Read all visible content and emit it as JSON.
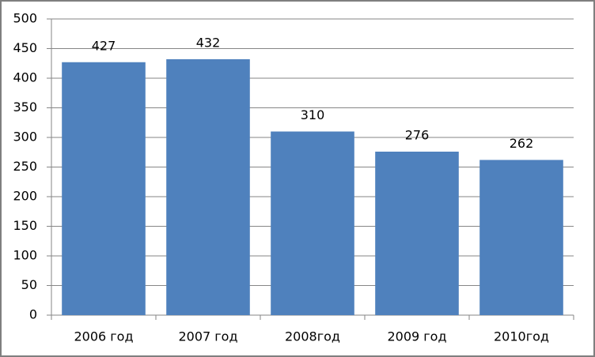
{
  "chart_data": {
    "type": "bar",
    "categories": [
      "2006 год",
      "2007 год",
      "2008год",
      "2009 год",
      "2010год"
    ],
    "values": [
      427,
      432,
      310,
      276,
      262
    ],
    "color": "#4f81bd",
    "ylim": [
      0,
      500
    ],
    "yticks": [
      0,
      50,
      100,
      150,
      200,
      250,
      300,
      350,
      400,
      450,
      500
    ],
    "grid": true,
    "data_labels": true
  }
}
